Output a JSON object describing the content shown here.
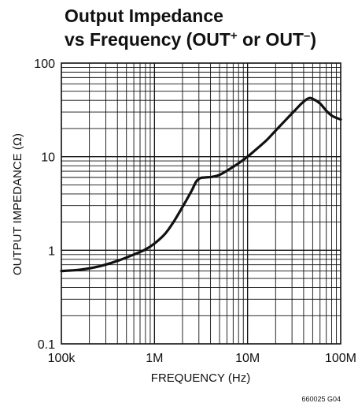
{
  "chart_data": {
    "type": "line",
    "title_line1": "Output Impedance",
    "title_line2_prefix": "vs Frequency (OUT",
    "title_line2_sup1": "+",
    "title_line2_mid": " or OUT",
    "title_line2_sup2": "–",
    "title_line2_suffix": ")",
    "xlabel": "FREQUENCY (Hz)",
    "ylabel": "OUTPUT IMPEDANCE (Ω)",
    "x_scale": "log",
    "y_scale": "log",
    "xlim": [
      100000,
      100000000
    ],
    "ylim": [
      0.1,
      100
    ],
    "x_ticks": [
      100000,
      1000000,
      10000000,
      100000000
    ],
    "x_tick_labels": [
      "100k",
      "1M",
      "10M",
      "100M"
    ],
    "y_ticks": [
      0.1,
      1,
      10,
      100
    ],
    "y_tick_labels": [
      "0.1",
      "1",
      "10",
      "100"
    ],
    "grid": true,
    "figure_code": "660025 G04",
    "series": [
      {
        "points": [
          [
            100000,
            0.6
          ],
          [
            160000,
            0.62
          ],
          [
            250000,
            0.67
          ],
          [
            400000,
            0.77
          ],
          [
            600000,
            0.9
          ],
          [
            800000,
            1.02
          ],
          [
            1000000,
            1.18
          ],
          [
            1300000,
            1.5
          ],
          [
            1600000,
            2.0
          ],
          [
            2000000,
            2.9
          ],
          [
            2500000,
            4.3
          ],
          [
            2800000,
            5.4
          ],
          [
            3100000,
            5.9
          ],
          [
            3500000,
            6.0
          ],
          [
            4200000,
            6.1
          ],
          [
            5000000,
            6.4
          ],
          [
            6300000,
            7.3
          ],
          [
            8000000,
            8.5
          ],
          [
            10000000,
            10.0
          ],
          [
            13000000,
            12.5
          ],
          [
            16000000,
            15.0
          ],
          [
            20000000,
            19.0
          ],
          [
            25000000,
            24.0
          ],
          [
            32000000,
            31.0
          ],
          [
            38000000,
            37.0
          ],
          [
            45000000,
            42.0
          ],
          [
            50000000,
            41.5
          ],
          [
            60000000,
            37.0
          ],
          [
            70000000,
            31.0
          ],
          [
            80000000,
            27.5
          ],
          [
            90000000,
            26.0
          ],
          [
            100000000,
            25.0
          ]
        ]
      }
    ]
  }
}
